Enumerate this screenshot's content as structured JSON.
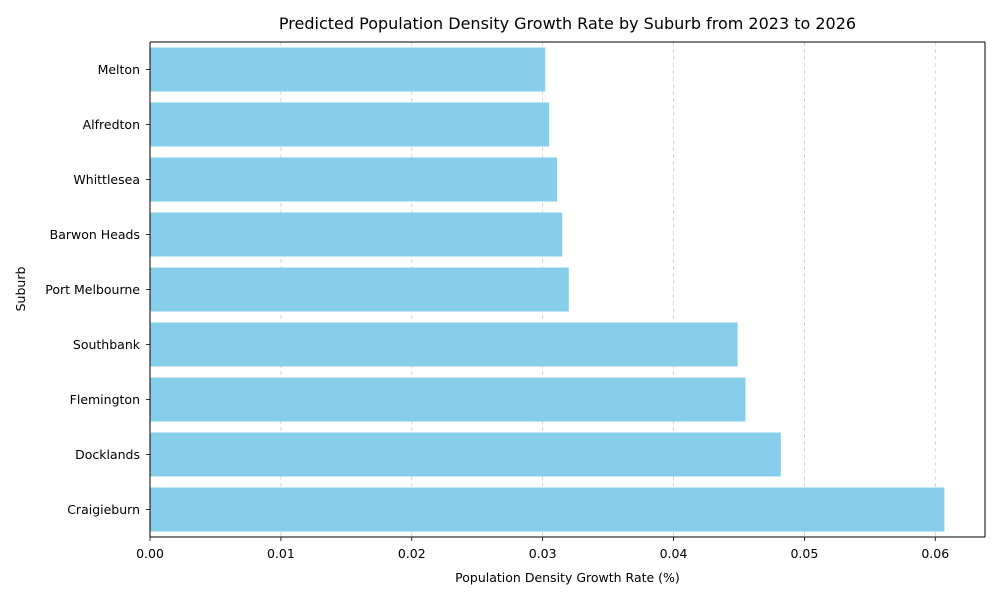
{
  "chart_data": {
    "type": "bar",
    "orientation": "horizontal",
    "title": "Predicted Population Density Growth Rate by Suburb from 2023 to 2026",
    "xlabel": "Population Density Growth Rate (%)",
    "ylabel": "Suburb",
    "categories": [
      "Melton ",
      "Alfredton",
      "Whittlesea",
      "Barwon Heads",
      "Port Melbourne",
      "Southbank",
      "Flemington",
      "Docklands",
      "Craigieburn"
    ],
    "values": [
      0.0302,
      0.0305,
      0.0311,
      0.0315,
      0.032,
      0.0449,
      0.0455,
      0.0482,
      0.0607
    ],
    "xlim": [
      0,
      0.0638
    ],
    "xticks": [
      0.0,
      0.01,
      0.02,
      0.03,
      0.04,
      0.05,
      0.06
    ],
    "xtick_labels": [
      "0.00",
      "0.01",
      "0.02",
      "0.03",
      "0.04",
      "0.05",
      "0.06"
    ],
    "grid": "x-dashed",
    "bar_color": "#87ceeb",
    "grid_color": "#cccccc"
  }
}
